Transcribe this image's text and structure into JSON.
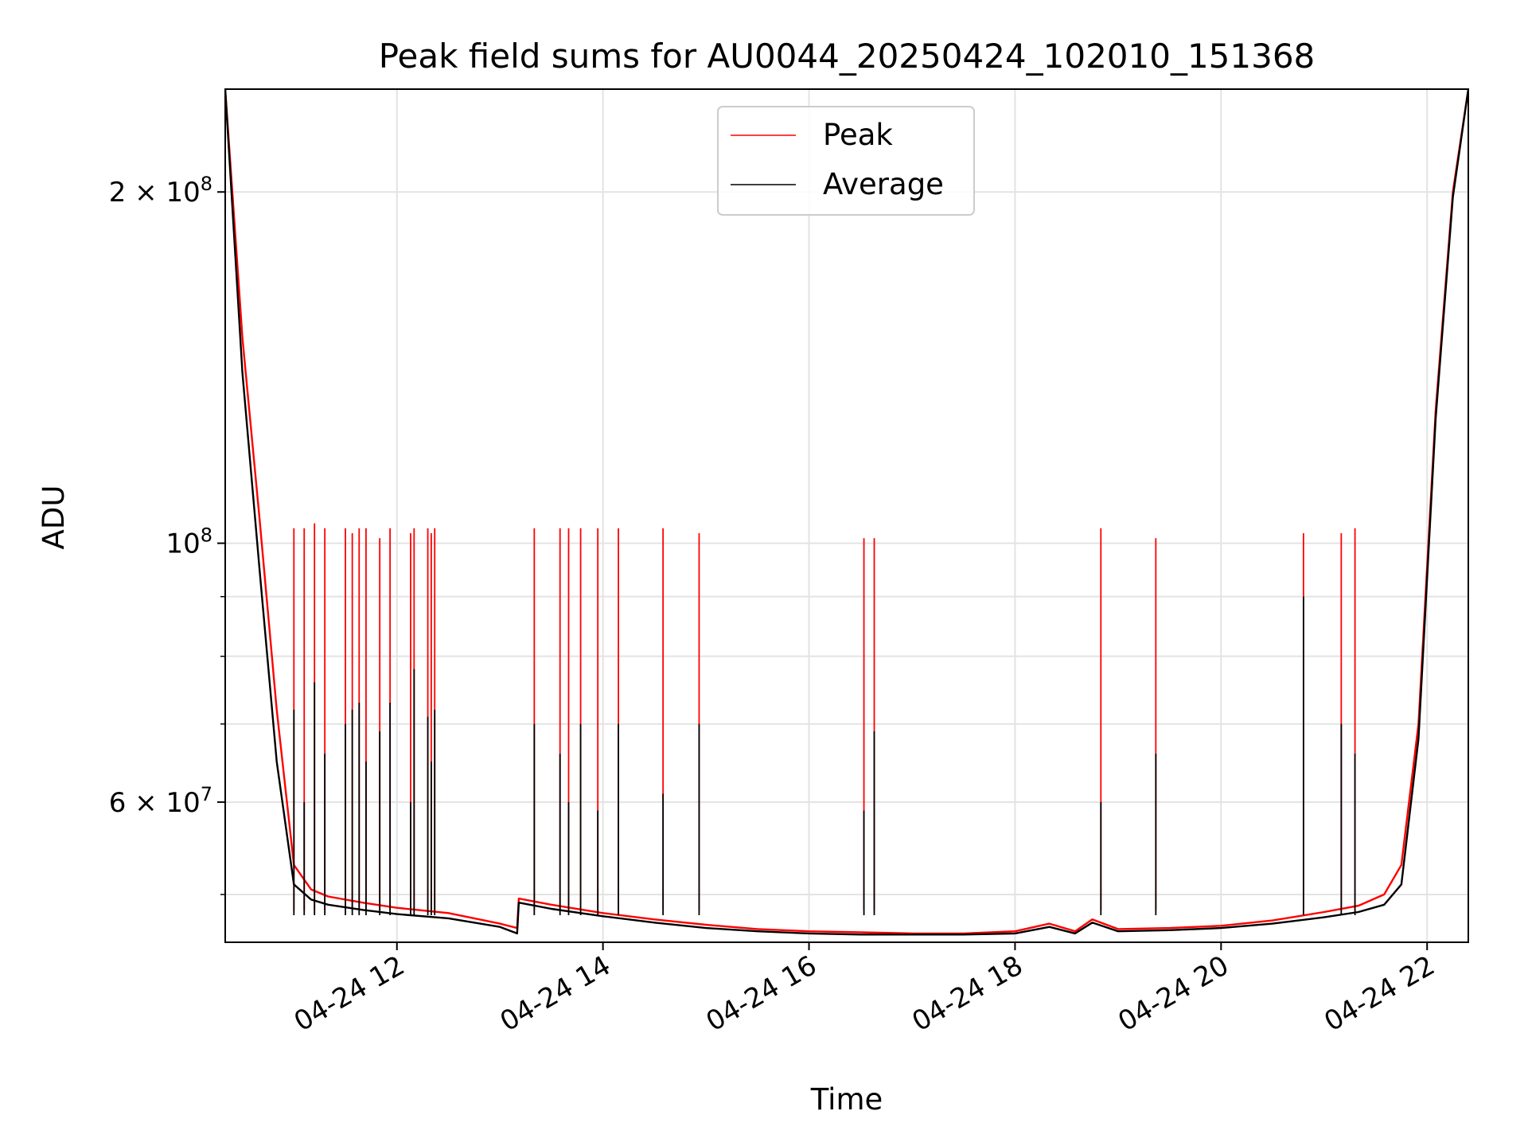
{
  "chart_data": {
    "type": "line",
    "title": "Peak field sums for AU0044_20250424_102010_151368",
    "xlabel": "Time",
    "ylabel": "ADU",
    "yscale": "log",
    "ylim": [
      45500000,
      245000000
    ],
    "xlim": [
      "2025-04-24 10:20",
      "2025-04-24 22:24"
    ],
    "grid": true,
    "legend_position": "top-center",
    "x_ticks": [
      {
        "x": "2025-04-24 12:00",
        "label": "04-24 12"
      },
      {
        "x": "2025-04-24 14:00",
        "label": "04-24 14"
      },
      {
        "x": "2025-04-24 16:00",
        "label": "04-24 16"
      },
      {
        "x": "2025-04-24 18:00",
        "label": "04-24 18"
      },
      {
        "x": "2025-04-24 20:00",
        "label": "04-24 20"
      },
      {
        "x": "2025-04-24 22:00",
        "label": "04-24 22"
      }
    ],
    "y_major_ticks": [
      {
        "value": 60000000,
        "mantissa": "6",
        "base": "× 10",
        "exp": "7"
      },
      {
        "value": 100000000,
        "mantissa": "",
        "base": "10",
        "exp": "8"
      },
      {
        "value": 200000000,
        "mantissa": "2",
        "base": "× 10",
        "exp": "8"
      }
    ],
    "y_minor_ticks": [
      50000000,
      70000000,
      80000000,
      90000000
    ],
    "series": [
      {
        "name": "Peak",
        "color": "#ff0000",
        "x": [
          "2025-04-24 10:20",
          "2025-04-24 10:30",
          "2025-04-24 10:40",
          "2025-04-24 10:50",
          "2025-04-24 11:00",
          "2025-04-24 11:10",
          "2025-04-24 11:20",
          "2025-04-24 11:40",
          "2025-04-24 12:00",
          "2025-04-24 12:30",
          "2025-04-24 13:00",
          "2025-04-24 13:10",
          "2025-04-24 13:11",
          "2025-04-24 13:30",
          "2025-04-24 14:00",
          "2025-04-24 14:30",
          "2025-04-24 15:00",
          "2025-04-24 15:30",
          "2025-04-24 16:00",
          "2025-04-24 16:30",
          "2025-04-24 17:00",
          "2025-04-24 17:30",
          "2025-04-24 18:00",
          "2025-04-24 18:20",
          "2025-04-24 18:35",
          "2025-04-24 18:45",
          "2025-04-24 19:00",
          "2025-04-24 19:30",
          "2025-04-24 20:00",
          "2025-04-24 20:30",
          "2025-04-24 21:00",
          "2025-04-24 21:20",
          "2025-04-24 21:35",
          "2025-04-24 21:45",
          "2025-04-24 21:55",
          "2025-04-24 22:05",
          "2025-04-24 22:15",
          "2025-04-24 22:24"
        ],
        "values": [
          245000000,
          150000000,
          105000000,
          72000000,
          53000000,
          50500000,
          49800000,
          49200000,
          48700000,
          48200000,
          47200000,
          46800000,
          49600000,
          49000000,
          48200000,
          47600000,
          47100000,
          46700000,
          46500000,
          46400000,
          46300000,
          46300000,
          46500000,
          47200000,
          46500000,
          47600000,
          46700000,
          46800000,
          47000000,
          47500000,
          48300000,
          48900000,
          50000000,
          53000000,
          70000000,
          130000000,
          200000000,
          245000000
        ]
      },
      {
        "name": "Average",
        "color": "#000000",
        "x": [
          "2025-04-24 10:20",
          "2025-04-24 10:30",
          "2025-04-24 10:40",
          "2025-04-24 10:50",
          "2025-04-24 11:00",
          "2025-04-24 11:10",
          "2025-04-24 11:20",
          "2025-04-24 11:40",
          "2025-04-24 12:00",
          "2025-04-24 12:30",
          "2025-04-24 13:00",
          "2025-04-24 13:10",
          "2025-04-24 13:11",
          "2025-04-24 13:30",
          "2025-04-24 14:00",
          "2025-04-24 14:30",
          "2025-04-24 15:00",
          "2025-04-24 15:30",
          "2025-04-24 16:00",
          "2025-04-24 16:30",
          "2025-04-24 17:00",
          "2025-04-24 17:30",
          "2025-04-24 18:00",
          "2025-04-24 18:20",
          "2025-04-24 18:35",
          "2025-04-24 18:45",
          "2025-04-24 19:00",
          "2025-04-24 19:30",
          "2025-04-24 20:00",
          "2025-04-24 20:30",
          "2025-04-24 21:00",
          "2025-04-24 21:20",
          "2025-04-24 21:35",
          "2025-04-24 21:45",
          "2025-04-24 21:55",
          "2025-04-24 22:05",
          "2025-04-24 22:15",
          "2025-04-24 22:24"
        ],
        "values": [
          245000000,
          140000000,
          95000000,
          65000000,
          51000000,
          49500000,
          49000000,
          48500000,
          48100000,
          47700000,
          46900000,
          46300000,
          49200000,
          48600000,
          47900000,
          47300000,
          46800000,
          46500000,
          46300000,
          46200000,
          46200000,
          46200000,
          46300000,
          46900000,
          46300000,
          47300000,
          46500000,
          46600000,
          46800000,
          47200000,
          47800000,
          48300000,
          49000000,
          51000000,
          68000000,
          128000000,
          198000000,
          245000000
        ]
      }
    ],
    "spikes": [
      {
        "x": "2025-04-24 11:00",
        "peak": 103000000,
        "average": 72000000
      },
      {
        "x": "2025-04-24 11:06",
        "peak": 103000000,
        "average": 60000000
      },
      {
        "x": "2025-04-24 11:12",
        "peak": 104000000,
        "average": 76000000
      },
      {
        "x": "2025-04-24 11:18",
        "peak": 103000000,
        "average": 66000000
      },
      {
        "x": "2025-04-24 11:30",
        "peak": 103000000,
        "average": 70000000
      },
      {
        "x": "2025-04-24 11:34",
        "peak": 102000000,
        "average": 72000000
      },
      {
        "x": "2025-04-24 11:38",
        "peak": 103000000,
        "average": 73000000
      },
      {
        "x": "2025-04-24 11:42",
        "peak": 103000000,
        "average": 65000000
      },
      {
        "x": "2025-04-24 11:50",
        "peak": 101000000,
        "average": 69000000
      },
      {
        "x": "2025-04-24 11:56",
        "peak": 103000000,
        "average": 73000000
      },
      {
        "x": "2025-04-24 12:08",
        "peak": 102000000,
        "average": 60000000
      },
      {
        "x": "2025-04-24 12:10",
        "peak": 103000000,
        "average": 78000000
      },
      {
        "x": "2025-04-24 12:18",
        "peak": 103000000,
        "average": 71000000
      },
      {
        "x": "2025-04-24 12:20",
        "peak": 102000000,
        "average": 65000000
      },
      {
        "x": "2025-04-24 12:22",
        "peak": 103000000,
        "average": 72000000
      },
      {
        "x": "2025-04-24 13:20",
        "peak": 103000000,
        "average": 70000000
      },
      {
        "x": "2025-04-24 13:35",
        "peak": 103000000,
        "average": 66000000
      },
      {
        "x": "2025-04-24 13:40",
        "peak": 103000000,
        "average": 60000000
      },
      {
        "x": "2025-04-24 13:47",
        "peak": 103000000,
        "average": 70000000
      },
      {
        "x": "2025-04-24 13:57",
        "peak": 103000000,
        "average": 59000000
      },
      {
        "x": "2025-04-24 14:09",
        "peak": 103000000,
        "average": 70000000
      },
      {
        "x": "2025-04-24 14:35",
        "peak": 103000000,
        "average": 61000000
      },
      {
        "x": "2025-04-24 14:56",
        "peak": 102000000,
        "average": 70000000
      },
      {
        "x": "2025-04-24 16:32",
        "peak": 101000000,
        "average": 59000000
      },
      {
        "x": "2025-04-24 16:38",
        "peak": 101000000,
        "average": 69000000
      },
      {
        "x": "2025-04-24 18:50",
        "peak": 103000000,
        "average": 60000000
      },
      {
        "x": "2025-04-24 19:22",
        "peak": 101000000,
        "average": 66000000
      },
      {
        "x": "2025-04-24 20:48",
        "peak": 102000000,
        "average": 90000000
      },
      {
        "x": "2025-04-24 21:10",
        "peak": 102000000,
        "average": 70000000
      },
      {
        "x": "2025-04-24 21:18",
        "peak": 103000000,
        "average": 66000000
      }
    ]
  }
}
